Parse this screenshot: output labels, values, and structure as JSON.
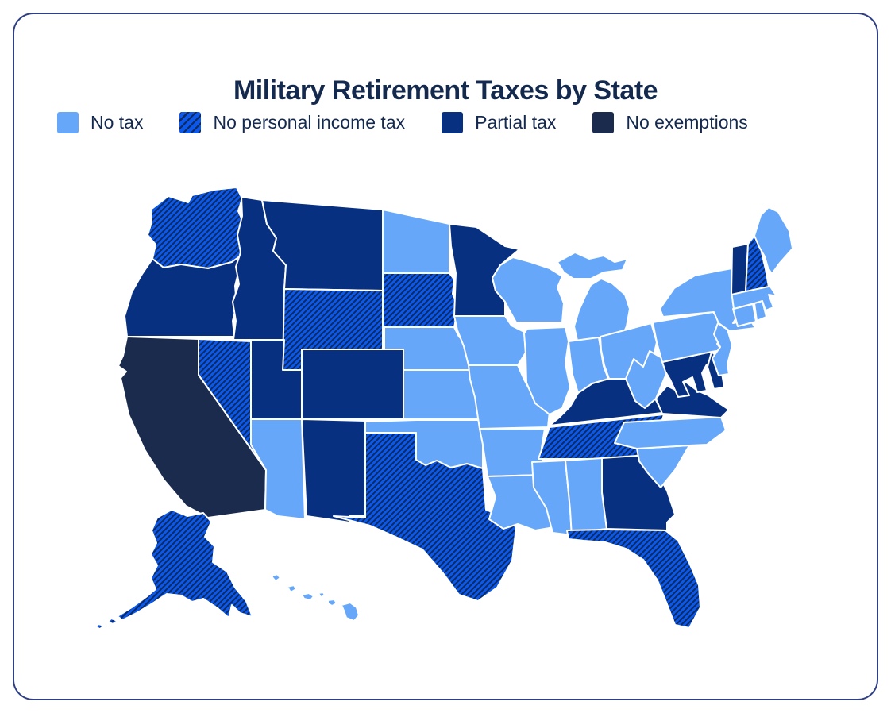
{
  "page_title": "Military Retirement Taxes by State",
  "theme": {
    "title_color": "#14294E",
    "text_color": "#14294E",
    "card_border_color": "#2E3F85",
    "state_border_color": "#FFFFFF"
  },
  "legend": {
    "items": [
      {
        "id": "no_tax",
        "label": "No tax",
        "color": "#66A7FA",
        "pattern": "solid"
      },
      {
        "id": "no_personal_income_tax",
        "label": "No personal income tax",
        "color": "#0B58EB",
        "pattern": "hatched",
        "hatch_color": "#0C2A60"
      },
      {
        "id": "partial_tax",
        "label": "Partial tax",
        "color": "#083080",
        "pattern": "solid"
      },
      {
        "id": "no_exemptions",
        "label": "No exemptions",
        "color": "#1A2B4D",
        "pattern": "solid"
      }
    ]
  },
  "chart_data": {
    "type": "choropleth",
    "title": "Military Retirement Taxes by State",
    "legend_position": "top",
    "categories": [
      "No tax",
      "No personal income tax",
      "Partial tax",
      "No exemptions"
    ],
    "states": [
      {
        "state": "Washington",
        "abbr": "WA",
        "category": "No personal income tax"
      },
      {
        "state": "Oregon",
        "abbr": "OR",
        "category": "Partial tax"
      },
      {
        "state": "California",
        "abbr": "CA",
        "category": "No exemptions"
      },
      {
        "state": "Nevada",
        "abbr": "NV",
        "category": "No personal income tax"
      },
      {
        "state": "Idaho",
        "abbr": "ID",
        "category": "Partial tax"
      },
      {
        "state": "Montana",
        "abbr": "MT",
        "category": "Partial tax"
      },
      {
        "state": "Wyoming",
        "abbr": "WY",
        "category": "No personal income tax"
      },
      {
        "state": "Utah",
        "abbr": "UT",
        "category": "Partial tax"
      },
      {
        "state": "Colorado",
        "abbr": "CO",
        "category": "Partial tax"
      },
      {
        "state": "Arizona",
        "abbr": "AZ",
        "category": "No tax"
      },
      {
        "state": "New Mexico",
        "abbr": "NM",
        "category": "Partial tax"
      },
      {
        "state": "North Dakota",
        "abbr": "ND",
        "category": "No tax"
      },
      {
        "state": "South Dakota",
        "abbr": "SD",
        "category": "No personal income tax"
      },
      {
        "state": "Nebraska",
        "abbr": "NE",
        "category": "No tax"
      },
      {
        "state": "Kansas",
        "abbr": "KS",
        "category": "No tax"
      },
      {
        "state": "Oklahoma",
        "abbr": "OK",
        "category": "No tax"
      },
      {
        "state": "Texas",
        "abbr": "TX",
        "category": "No personal income tax"
      },
      {
        "state": "Minnesota",
        "abbr": "MN",
        "category": "Partial tax"
      },
      {
        "state": "Iowa",
        "abbr": "IA",
        "category": "No tax"
      },
      {
        "state": "Missouri",
        "abbr": "MO",
        "category": "No tax"
      },
      {
        "state": "Arkansas",
        "abbr": "AR",
        "category": "No tax"
      },
      {
        "state": "Louisiana",
        "abbr": "LA",
        "category": "No tax"
      },
      {
        "state": "Wisconsin",
        "abbr": "WI",
        "category": "No tax"
      },
      {
        "state": "Illinois",
        "abbr": "IL",
        "category": "No tax"
      },
      {
        "state": "Mississippi",
        "abbr": "MS",
        "category": "No tax"
      },
      {
        "state": "Michigan",
        "abbr": "MI",
        "category": "No tax"
      },
      {
        "state": "Indiana",
        "abbr": "IN",
        "category": "No tax"
      },
      {
        "state": "Ohio",
        "abbr": "OH",
        "category": "No tax"
      },
      {
        "state": "Kentucky",
        "abbr": "KY",
        "category": "Partial tax"
      },
      {
        "state": "Tennessee",
        "abbr": "TN",
        "category": "No personal income tax"
      },
      {
        "state": "Alabama",
        "abbr": "AL",
        "category": "No tax"
      },
      {
        "state": "Georgia",
        "abbr": "GA",
        "category": "Partial tax"
      },
      {
        "state": "South Carolina",
        "abbr": "SC",
        "category": "No tax"
      },
      {
        "state": "North Carolina",
        "abbr": "NC",
        "category": "No tax"
      },
      {
        "state": "Florida",
        "abbr": "FL",
        "category": "No personal income tax"
      },
      {
        "state": "West Virginia",
        "abbr": "WV",
        "category": "No tax"
      },
      {
        "state": "Virginia",
        "abbr": "VA",
        "category": "Partial tax"
      },
      {
        "state": "Maryland",
        "abbr": "MD",
        "category": "Partial tax"
      },
      {
        "state": "Delaware",
        "abbr": "DE",
        "category": "Partial tax"
      },
      {
        "state": "Pennsylvania",
        "abbr": "PA",
        "category": "No tax"
      },
      {
        "state": "New Jersey",
        "abbr": "NJ",
        "category": "No tax"
      },
      {
        "state": "New York",
        "abbr": "NY",
        "category": "No tax"
      },
      {
        "state": "Connecticut",
        "abbr": "CT",
        "category": "No tax"
      },
      {
        "state": "Rhode Island",
        "abbr": "RI",
        "category": "No tax"
      },
      {
        "state": "Massachusetts",
        "abbr": "MA",
        "category": "No tax"
      },
      {
        "state": "Vermont",
        "abbr": "VT",
        "category": "Partial tax"
      },
      {
        "state": "New Hampshire",
        "abbr": "NH",
        "category": "No personal income tax"
      },
      {
        "state": "Maine",
        "abbr": "ME",
        "category": "No tax"
      },
      {
        "state": "Alaska",
        "abbr": "AK",
        "category": "No personal income tax"
      },
      {
        "state": "Hawaii",
        "abbr": "HI",
        "category": "No tax"
      }
    ]
  }
}
